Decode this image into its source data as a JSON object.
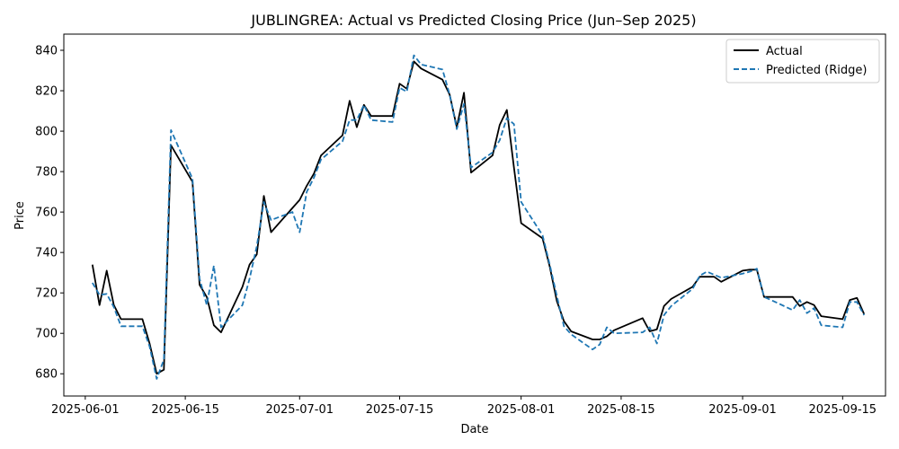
{
  "chart_data": {
    "type": "line",
    "title": "JUBLINGREA: Actual vs Predicted Closing Price (Jun–Sep 2025)",
    "xlabel": "Date",
    "ylabel": "Price",
    "xlim": [
      "2025-05-29",
      "2025-09-21"
    ],
    "ylim": [
      669,
      848
    ],
    "x_ticks": [
      "2025-06-01",
      "2025-06-15",
      "2025-07-01",
      "2025-07-15",
      "2025-08-01",
      "2025-08-15",
      "2025-09-01",
      "2025-09-15"
    ],
    "y_ticks": [
      680,
      700,
      720,
      740,
      760,
      780,
      800,
      820,
      840
    ],
    "grid": false,
    "legend_position": "top-right",
    "series": [
      {
        "name": "Actual",
        "color": "#000000",
        "style": "solid",
        "points": [
          [
            "2025-06-02",
            734
          ],
          [
            "2025-06-03",
            714
          ],
          [
            "2025-06-04",
            731
          ],
          [
            "2025-06-05",
            714
          ],
          [
            "2025-06-06",
            707
          ],
          [
            "2025-06-09",
            707
          ],
          [
            "2025-06-10",
            695
          ],
          [
            "2025-06-11",
            680
          ],
          [
            "2025-06-12",
            682
          ],
          [
            "2025-06-13",
            793
          ],
          [
            "2025-06-16",
            775
          ],
          [
            "2025-06-17",
            724
          ],
          [
            "2025-06-18",
            718
          ],
          [
            "2025-06-19",
            704
          ],
          [
            "2025-06-20",
            700.5
          ],
          [
            "2025-06-23",
            723
          ],
          [
            "2025-06-24",
            734
          ],
          [
            "2025-06-25",
            739
          ],
          [
            "2025-06-26",
            768
          ],
          [
            "2025-06-27",
            750
          ],
          [
            "2025-06-30",
            762
          ],
          [
            "2025-07-01",
            766
          ],
          [
            "2025-07-02",
            773
          ],
          [
            "2025-07-03",
            779
          ],
          [
            "2025-07-04",
            788
          ],
          [
            "2025-07-07",
            798
          ],
          [
            "2025-07-08",
            815
          ],
          [
            "2025-07-09",
            802
          ],
          [
            "2025-07-10",
            813
          ],
          [
            "2025-07-11",
            807.5
          ],
          [
            "2025-07-14",
            807.5
          ],
          [
            "2025-07-15",
            823.5
          ],
          [
            "2025-07-16",
            821
          ],
          [
            "2025-07-17",
            834.5
          ],
          [
            "2025-07-18",
            831
          ],
          [
            "2025-07-21",
            825.5
          ],
          [
            "2025-07-22",
            818
          ],
          [
            "2025-07-23",
            802
          ],
          [
            "2025-07-24",
            819
          ],
          [
            "2025-07-25",
            779.5
          ],
          [
            "2025-07-28",
            788
          ],
          [
            "2025-07-29",
            803
          ],
          [
            "2025-07-30",
            810.5
          ],
          [
            "2025-07-31",
            782
          ],
          [
            "2025-08-01",
            754.5
          ],
          [
            "2025-08-04",
            747
          ],
          [
            "2025-08-05",
            733
          ],
          [
            "2025-08-06",
            716
          ],
          [
            "2025-08-07",
            706
          ],
          [
            "2025-08-08",
            701
          ],
          [
            "2025-08-11",
            697
          ],
          [
            "2025-08-12",
            697
          ],
          [
            "2025-08-13",
            698.5
          ],
          [
            "2025-08-14",
            701.5
          ],
          [
            "2025-08-18",
            707.5
          ],
          [
            "2025-08-19",
            701
          ],
          [
            "2025-08-20",
            702
          ],
          [
            "2025-08-21",
            713.5
          ],
          [
            "2025-08-22",
            717
          ],
          [
            "2025-08-25",
            723
          ],
          [
            "2025-08-26",
            728
          ],
          [
            "2025-08-28",
            728
          ],
          [
            "2025-08-29",
            725.5
          ],
          [
            "2025-09-01",
            731
          ],
          [
            "2025-09-02",
            731.5
          ],
          [
            "2025-09-03",
            731.5
          ],
          [
            "2025-09-04",
            718
          ],
          [
            "2025-09-05",
            718
          ],
          [
            "2025-09-08",
            718
          ],
          [
            "2025-09-09",
            713.5
          ],
          [
            "2025-09-10",
            715.5
          ],
          [
            "2025-09-11",
            714
          ],
          [
            "2025-09-12",
            708.5
          ],
          [
            "2025-09-15",
            707
          ],
          [
            "2025-09-16",
            716.5
          ],
          [
            "2025-09-17",
            717.5
          ],
          [
            "2025-09-18",
            709.5
          ]
        ]
      },
      {
        "name": "Predicted (Ridge)",
        "color": "#1f77b4",
        "style": "dashed",
        "points": [
          [
            "2025-06-02",
            725
          ],
          [
            "2025-06-03",
            719
          ],
          [
            "2025-06-04",
            719.5
          ],
          [
            "2025-06-05",
            713
          ],
          [
            "2025-06-06",
            703.5
          ],
          [
            "2025-06-09",
            703.5
          ],
          [
            "2025-06-10",
            693.5
          ],
          [
            "2025-06-11",
            677.5
          ],
          [
            "2025-06-12",
            687
          ],
          [
            "2025-06-13",
            800.5
          ],
          [
            "2025-06-16",
            776.5
          ],
          [
            "2025-06-17",
            727
          ],
          [
            "2025-06-18",
            714
          ],
          [
            "2025-06-19",
            733.5
          ],
          [
            "2025-06-20",
            703
          ],
          [
            "2025-06-23",
            714
          ],
          [
            "2025-06-24",
            727
          ],
          [
            "2025-06-25",
            743
          ],
          [
            "2025-06-26",
            765
          ],
          [
            "2025-06-27",
            756
          ],
          [
            "2025-06-30",
            760
          ],
          [
            "2025-07-01",
            750
          ],
          [
            "2025-07-02",
            770
          ],
          [
            "2025-07-03",
            777
          ],
          [
            "2025-07-04",
            786
          ],
          [
            "2025-07-07",
            795
          ],
          [
            "2025-07-08",
            805.5
          ],
          [
            "2025-07-09",
            805.5
          ],
          [
            "2025-07-10",
            813
          ],
          [
            "2025-07-11",
            805.5
          ],
          [
            "2025-07-14",
            804.5
          ],
          [
            "2025-07-15",
            821.5
          ],
          [
            "2025-07-16",
            819.5
          ],
          [
            "2025-07-17",
            837.5
          ],
          [
            "2025-07-18",
            833
          ],
          [
            "2025-07-21",
            830.5
          ],
          [
            "2025-07-22",
            818
          ],
          [
            "2025-07-23",
            801
          ],
          [
            "2025-07-24",
            813.5
          ],
          [
            "2025-07-25",
            782
          ],
          [
            "2025-07-28",
            789.5
          ],
          [
            "2025-07-29",
            795.5
          ],
          [
            "2025-07-30",
            806.5
          ],
          [
            "2025-07-31",
            803.5
          ],
          [
            "2025-08-01",
            765
          ],
          [
            "2025-08-04",
            748.5
          ],
          [
            "2025-08-05",
            734
          ],
          [
            "2025-08-06",
            718.5
          ],
          [
            "2025-08-07",
            703.5
          ],
          [
            "2025-08-08",
            699.5
          ],
          [
            "2025-08-11",
            692
          ],
          [
            "2025-08-12",
            694.5
          ],
          [
            "2025-08-13",
            703
          ],
          [
            "2025-08-14",
            700
          ],
          [
            "2025-08-18",
            700.5
          ],
          [
            "2025-08-19",
            703
          ],
          [
            "2025-08-20",
            695
          ],
          [
            "2025-08-21",
            709
          ],
          [
            "2025-08-22",
            713.5
          ],
          [
            "2025-08-25",
            722
          ],
          [
            "2025-08-26",
            728.5
          ],
          [
            "2025-08-27",
            730.5
          ],
          [
            "2025-08-29",
            727.5
          ],
          [
            "2025-09-01",
            729.5
          ],
          [
            "2025-09-02",
            730.5
          ],
          [
            "2025-09-03",
            732
          ],
          [
            "2025-09-04",
            718
          ],
          [
            "2025-09-05",
            716.5
          ],
          [
            "2025-09-08",
            711.5
          ],
          [
            "2025-09-09",
            716.5
          ],
          [
            "2025-09-10",
            710
          ],
          [
            "2025-09-11",
            712.5
          ],
          [
            "2025-09-12",
            704
          ],
          [
            "2025-09-15",
            703
          ],
          [
            "2025-09-16",
            715.5
          ],
          [
            "2025-09-17",
            715.5
          ],
          [
            "2025-09-18",
            709
          ]
        ]
      }
    ]
  }
}
